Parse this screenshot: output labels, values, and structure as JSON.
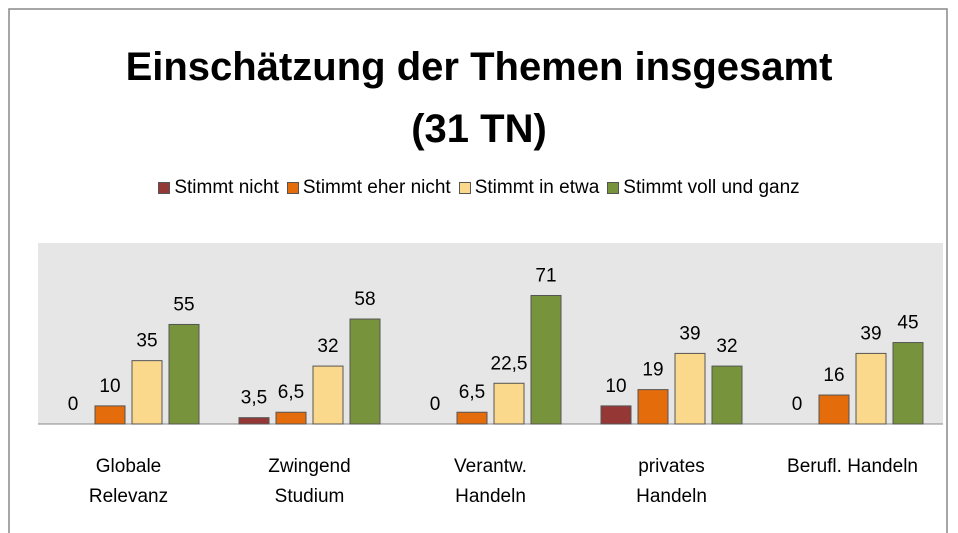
{
  "chart_data": {
    "type": "bar",
    "title": "Einschätzung der Themen insgesamt\n(31 TN)",
    "categories": [
      "Globale\nRelevanz",
      "Zwingend\nStudium",
      "Verantw.\nHandeln",
      "privates\nHandeln",
      "Berufl. Handeln"
    ],
    "series": [
      {
        "name": "Stimmt nicht",
        "color": "#953735",
        "values": [
          0,
          3.5,
          0,
          10,
          0
        ],
        "value_labels": [
          "0",
          "3,5",
          "0",
          "10",
          "0"
        ]
      },
      {
        "name": "Stimmt eher nicht",
        "color": "#e46c0a",
        "values": [
          10,
          6.5,
          6.5,
          19,
          16
        ],
        "value_labels": [
          "10",
          "6,5",
          "6,5",
          "19",
          "16"
        ]
      },
      {
        "name": "Stimmt in etwa",
        "color": "#fad98c",
        "values": [
          35,
          32,
          22.5,
          39,
          39
        ],
        "value_labels": [
          "35",
          "32",
          "22,5",
          "39",
          "39"
        ]
      },
      {
        "name": "Stimmt voll und ganz",
        "color": "#77933c",
        "values": [
          55,
          58,
          71,
          32,
          45
        ]
      }
    ],
    "ylim": [
      0,
      100
    ]
  }
}
